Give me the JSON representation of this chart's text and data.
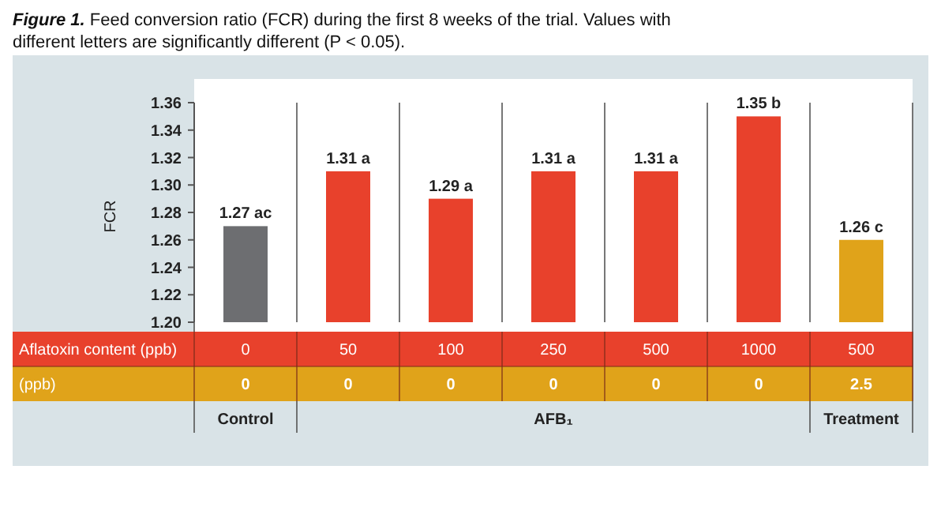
{
  "chart_data": {
    "type": "bar",
    "title": "Figure 1. Feed conversion ratio (FCR) during the first 8 weeks of the trial. Values with different letters are significantly different (P < 0.05).",
    "ylabel": "FCR",
    "categories": [
      "0",
      "50",
      "100",
      "250",
      "500",
      "1000",
      "500"
    ],
    "values": [
      1.27,
      1.31,
      1.29,
      1.31,
      1.31,
      1.35,
      1.26
    ],
    "colors": [
      "#6d6e71",
      "#e8412c",
      "#e8412c",
      "#e8412c",
      "#e8412c",
      "#e8412c",
      "#e0a31a"
    ],
    "value_labels": [
      "1.27 ac",
      "1.31 a",
      "1.29 a",
      "1.31 a",
      "1.31 a",
      "1.35 b",
      "1.26 c"
    ],
    "ylim": [
      1.2,
      1.36
    ],
    "yticks": [
      {
        "value": 1.2,
        "label": "1.20"
      },
      {
        "value": 1.22,
        "label": "1.22"
      },
      {
        "value": 1.24,
        "label": "1.24"
      },
      {
        "value": 1.26,
        "label": "1.26"
      },
      {
        "value": 1.28,
        "label": "1.28"
      },
      {
        "value": 1.3,
        "label": "1.30"
      },
      {
        "value": 1.32,
        "label": "1.32"
      },
      {
        "value": 1.34,
        "label": "1.34"
      },
      {
        "value": 1.36,
        "label": "1.36"
      }
    ],
    "annotations": [
      "Aflatoxin content (ppb)",
      "(ppb)",
      "0",
      "0",
      "0",
      "0",
      "0",
      "0",
      "2.5",
      "Control",
      "AFB₁",
      "Treatment"
    ]
  }
}
